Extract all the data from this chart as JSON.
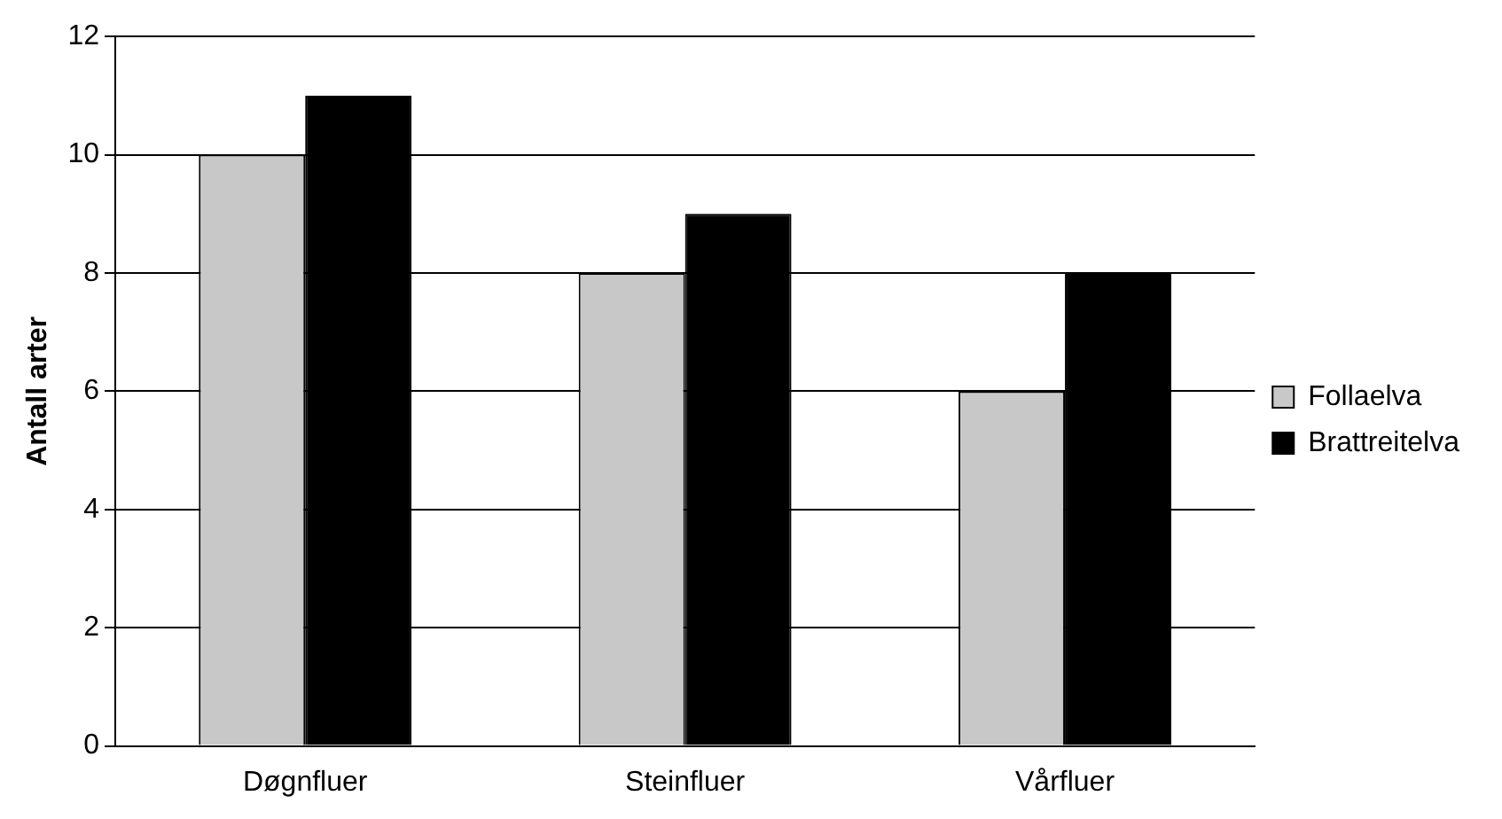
{
  "chart_data": {
    "type": "bar",
    "ylabel": "Antall arter",
    "categories": [
      "Døgnfluer",
      "Steinfluer",
      "Vårfluer"
    ],
    "series": [
      {
        "name": "Follaelva",
        "color": "#c8c8c8",
        "values": [
          10,
          8,
          6
        ]
      },
      {
        "name": "Brattreitelva",
        "color": "#000000",
        "values": [
          11,
          9,
          8
        ]
      }
    ],
    "ylim": [
      0,
      12
    ],
    "yticks": [
      0,
      2,
      4,
      6,
      8,
      10,
      12
    ],
    "grid": "y",
    "legend": "right"
  }
}
